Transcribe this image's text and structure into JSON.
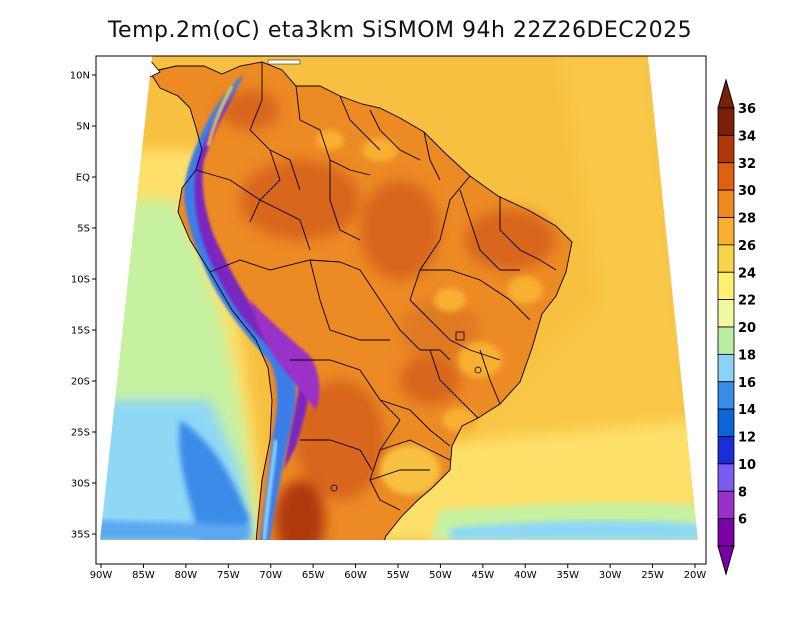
{
  "title": "Temp.2m(oC) eta3km SiSMOM 94h 22Z26DEC2025",
  "map": {
    "lon_range": [
      -90,
      -20
    ],
    "lat_range": [
      -37.5,
      12
    ],
    "lon_ticks": [
      "90W",
      "85W",
      "80W",
      "75W",
      "70W",
      "65W",
      "60W",
      "55W",
      "50W",
      "45W",
      "40W",
      "35W",
      "30W",
      "25W",
      "20W"
    ],
    "lat_ticks": [
      "10N",
      "5N",
      "EQ",
      "5S",
      "10S",
      "15S",
      "20S",
      "25S",
      "30S",
      "35S"
    ]
  },
  "colorbar": {
    "labels": [
      "6",
      "8",
      "10",
      "12",
      "14",
      "16",
      "18",
      "20",
      "22",
      "24",
      "26",
      "28",
      "30",
      "32",
      "34",
      "36"
    ],
    "colors": [
      "#7a00a8",
      "#9a30c8",
      "#7a5cf0",
      "#1a2ed8",
      "#0a66d8",
      "#3a8ce8",
      "#8cd2f8",
      "#b8eea0",
      "#f0f8a0",
      "#fff070",
      "#f8d44a",
      "#f8b030",
      "#f08820",
      "#e06010",
      "#b03808",
      "#7a2008"
    ]
  },
  "colors": {
    "ocean_warm": "#f8c040",
    "ocean_mid": "#fde06a",
    "ocean_cool": "#c6f2a0",
    "ocean_cold": "#8ed8f6",
    "land_hot": "#ec8a24",
    "land_very_hot": "#d8661a",
    "andes_cold": "#7a28c0",
    "andes_blue": "#3a7ee8",
    "border": "#000000"
  }
}
